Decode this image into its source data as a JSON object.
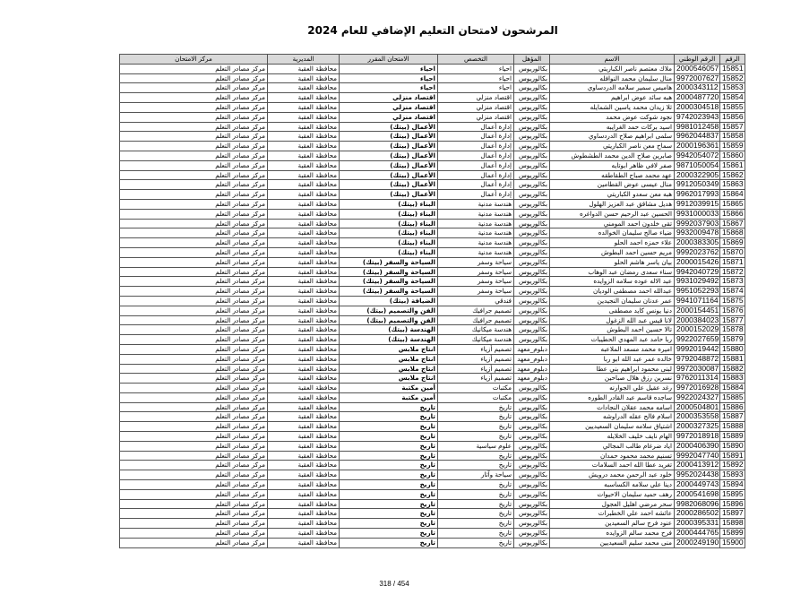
{
  "title": "المرشحون لامتحان التعليم الإضافي للعام 2024",
  "headers": {
    "number": "الرقم",
    "national_id": "الرقم الوطني",
    "name": "الاسم",
    "qualification": "المؤهل",
    "specialty": "التخصص",
    "exam": "الامتحان المقرر",
    "directorate": "المديرية",
    "center": "مركز الامتحان"
  },
  "rows": [
    [
      "15851",
      "2000546057",
      "ملاك معتصم ناصر الكباريتي",
      "بكالوريوس",
      "احياء",
      "احياء",
      "محافظة العقبة",
      "مركز مصادر التعلم"
    ],
    [
      "15852",
      "9972007627",
      "منال سليمان محمد النوافله",
      "بكالوريوس",
      "احياء",
      "احياء",
      "محافظة العقبة",
      "مركز مصادر التعلم"
    ],
    [
      "15853",
      "2000343112",
      "هاميس سمير سلامه الدردساوي",
      "بكالوريوس",
      "احياء",
      "احياء",
      "محافظة العقبة",
      "مركز مصادر التعلم"
    ],
    [
      "15854",
      "2000487720",
      "هبه سائد عوض ابراهيم",
      "بكالوريوس",
      "اقتصاد منزلي",
      "اقتصاد منزلي",
      "محافظة العقبة",
      "مركز مصادر التعلم"
    ],
    [
      "15855",
      "2000304518",
      "ثلا زيدان محمد ياسين الشمايله",
      "بكالوريوس",
      "اقتصاد منزلي",
      "اقتصاد منزلي",
      "محافظة العقبة",
      "مركز مصادر التعلم"
    ],
    [
      "15856",
      "9742023943",
      "نجود شوكت عوض محمد",
      "بكالوريوس",
      "اقتصاد منزلي",
      "اقتصاد منزلي",
      "محافظة العقبة",
      "مركز مصادر التعلم"
    ],
    [
      "15857",
      "9981012458",
      "اسيد بركات حمد الغرايبه",
      "بكالوريوس",
      "إدارة أعمال",
      "الأعمال (بيتك)",
      "محافظة العقبة",
      "مركز مصادر التعلم"
    ],
    [
      "15858",
      "9962044837",
      "سلمى ابراهيم صلاح الدردساوي",
      "بكالوريوس",
      "إدارة أعمال",
      "الأعمال (بيتك)",
      "محافظة العقبة",
      "مركز مصادر التعلم"
    ],
    [
      "15859",
      "2000196361",
      "سماح معن ناصر الكباريتي",
      "بكالوريوس",
      "إدارة أعمال",
      "الأعمال (بيتك)",
      "محافظة العقبة",
      "مركز مصادر التعلم"
    ],
    [
      "15860",
      "9942054072",
      "صابرين صلاح الدين محمد الطشطوش",
      "بكالوريوس",
      "إدارة أعمال",
      "الأعمال (بيتك)",
      "محافظة العقبة",
      "مركز مصادر التعلم"
    ],
    [
      "15861",
      "9871050054",
      "صفر لافي ظاهر ابوتايه",
      "بكالوريوس",
      "إدارة أعمال",
      "الأعمال (بيتك)",
      "محافظة العقبة",
      "مركز مصادر التعلم"
    ],
    [
      "15862",
      "2000322905",
      "عهد محمد صباح الطقاطقه",
      "بكالوريوس",
      "إدارة أعمال",
      "الأعمال (بيتك)",
      "محافظة العقبة",
      "مركز مصادر التعلم"
    ],
    [
      "15863",
      "9912050349",
      "منال عيسى عوض القطامين",
      "بكالوريوس",
      "إدارة أعمال",
      "الأعمال (بيتك)",
      "محافظة العقبة",
      "مركز مصادر التعلم"
    ],
    [
      "15864",
      "9962017993",
      "هبه معن سعدو الكباريتي",
      "بكالوريوس",
      "إدارة أعمال",
      "الأعمال (بيتك)",
      "محافظة العقبة",
      "مركز مصادر التعلم"
    ],
    [
      "15865",
      "9912039915",
      "هديل مشاقق عبد العزيز الهلول",
      "بكالوريوس",
      "هندسة مدنية",
      "البناء (بيتك)",
      "محافظة العقبة",
      "مركز مصادر التعلم"
    ],
    [
      "15866",
      "9931000033",
      "الحسين عبد الرحيم حسن الدواغره",
      "بكالوريوس",
      "هندسة مدنية",
      "البناء (بيتك)",
      "محافظة العقبة",
      "مركز مصادر التعلم"
    ],
    [
      "15867",
      "9992037903",
      "تقى خلدون احمد المومني",
      "بكالوريوس",
      "هندسة مدنية",
      "البناء (بيتك)",
      "محافظة العقبة",
      "مركز مصادر التعلم"
    ],
    [
      "15868",
      "9932009478",
      "ضياء صالح سليمان الخوالده",
      "بكالوريوس",
      "هندسة مدنية",
      "البناء (بيتك)",
      "محافظة العقبة",
      "مركز مصادر التعلم"
    ],
    [
      "15869",
      "2000383305",
      "علاء حمزه احمد الحلو",
      "بكالوريوس",
      "هندسة مدنية",
      "البناء (بيتك)",
      "محافظة العقبة",
      "مركز مصادر التعلم"
    ],
    [
      "15870",
      "9992023762",
      "مريم حسين احمد البطوش",
      "بكالوريوس",
      "هندسة مدنية",
      "البناء (بيتك)",
      "محافظة العقبة",
      "مركز مصادر التعلم"
    ],
    [
      "15871",
      "2000015426",
      "بيان ياسر هاشم الحلو",
      "بكالوريوس",
      "سياحة وسفر",
      "السياحة والسفر (بيتك)",
      "محافظة العقبة",
      "مركز مصادر التعلم"
    ],
    [
      "15872",
      "9942040729",
      "سناء سعدى رمضان عبد الوهاب",
      "بكالوريوس",
      "سياحة وسفر",
      "السياحة والسفر (بيتك)",
      "محافظة العقبة",
      "مركز مصادر التعلم"
    ],
    [
      "15873",
      "9931029492",
      "عبد الاله عوده سلامه الزوايده",
      "بكالوريوس",
      "سياحة وسفر",
      "السياحة والسفر (بيتك)",
      "محافظة العقبة",
      "مركز مصادر التعلم"
    ],
    [
      "15874",
      "9951052293",
      "عبدالله احمد مصطفى الوديان",
      "بكالوريوس",
      "سياحة وسفر",
      "السياحة والسفر (بيتك)",
      "محافظة العقبة",
      "مركز مصادر التعلم"
    ],
    [
      "15875",
      "9941071164",
      "عمر عدنان سليمان النجيدين",
      "بكالوريوس",
      "فندقي",
      "الضيافة (بيتك)",
      "محافظة العقبة",
      "مركز مصادر التعلم"
    ],
    [
      "15876",
      "2000154451",
      "دنيا يونس كايد مصطفى",
      "بكالوريوس",
      "تصميم جرافيك",
      "الفن والتصميم (بيتك)",
      "محافظة العقبة",
      "مركز مصادر التعلم"
    ],
    [
      "15877",
      "2000384023",
      "لانا قيس عبد الله الزغول",
      "بكالوريوس",
      "تصميم جرافيك",
      "الفن والتصميم (بيتك)",
      "محافظة العقبة",
      "مركز مصادر التعلم"
    ],
    [
      "15878",
      "2000152029",
      "تالا حسين احمد البطوش",
      "بكالوريوس",
      "هندسة ميكانيك",
      "الهندسة (بيتك)",
      "محافظة العقبة",
      "مركز مصادر التعلم"
    ],
    [
      "15879",
      "9922027659",
      "ربا حامد عبد المهدي الحطيبات",
      "بكالوريوس",
      "هندسة ميكانيك",
      "الهندسة (بيتك)",
      "محافظة العقبة",
      "مركز مصادر التعلم"
    ],
    [
      "15880",
      "9992019442",
      "اميره محمد مسعد الملاعبه",
      "دبلوم_معهد",
      "تصميم أزياء",
      "انتاج ملابس",
      "محافظة العقبة",
      "مركز مصادر التعلم"
    ],
    [
      "15881",
      "9792048872",
      "خالده عمر عبد الله ابو ربا",
      "دبلوم_معهد",
      "تصميم أزياء",
      "انتاج ملابس",
      "محافظة العقبة",
      "مركز مصادر التعلم"
    ],
    [
      "15882",
      "9972030087",
      "لبنى محمود ابراهيم بني عطا",
      "دبلوم_معهد",
      "تصميم أزياء",
      "انتاج ملابس",
      "محافظة العقبة",
      "مركز مصادر التعلم"
    ],
    [
      "15883",
      "9762011314",
      "نسرين رزق هلال صباحين",
      "دبلوم_معهد",
      "تصميم أزياء",
      "انتاج ملابس",
      "محافظة العقبة",
      "مركز مصادر التعلم"
    ],
    [
      "15884",
      "9972016928",
      "رغد عقيل علي الجوارنه",
      "بكالوريوس",
      "مكتبات",
      "أمين مكتبة",
      "محافظة العقبة",
      "مركز مصادر التعلم"
    ],
    [
      "15885",
      "9922024327",
      "ساجده قاسم عبد القادر الطوره",
      "بكالوريوس",
      "مكتبات",
      "أمين مكتبة",
      "محافظة العقبة",
      "مركز مصادر التعلم"
    ],
    [
      "15886",
      "2000504801",
      "اسامه محمد عقلان النجادات",
      "بكالوريوس",
      "تاريخ",
      "تاريخ",
      "محافظة العقبة",
      "مركز مصادر التعلم"
    ],
    [
      "15887",
      "2000353558",
      "اسلام فالح عقله الدراوشه",
      "بكالوريوس",
      "تاريخ",
      "تاريخ",
      "محافظة العقبة",
      "مركز مصادر التعلم"
    ],
    [
      "15888",
      "2000327325",
      "اشتياق سلامه سليمان السعيديين",
      "بكالوريوس",
      "تاريخ",
      "تاريخ",
      "محافظة العقبة",
      "مركز مصادر التعلم"
    ],
    [
      "15889",
      "9972018918",
      "الهام نايف خليف الخلايله",
      "بكالوريوس",
      "تاريخ",
      "تاريخ",
      "محافظة العقبة",
      "مركز مصادر التعلم"
    ],
    [
      "15890",
      "2000406390",
      "اياد ضرغام طالب المجالي",
      "بكالوريوس",
      "علوم سياسية",
      "تاريخ",
      "محافظة العقبة",
      "مركز مصادر التعلم"
    ],
    [
      "15891",
      "9992047740",
      "تسنيم محمد محمود حمدان",
      "بكالوريوس",
      "تاريخ",
      "تاريخ",
      "محافظة العقبة",
      "مركز مصادر التعلم"
    ],
    [
      "15892",
      "2000413912",
      "تغريد عطا الله احمد السلامات",
      "بكالوريوس",
      "تاريخ",
      "تاريخ",
      "محافظة العقبة",
      "مركز مصادر التعلم"
    ],
    [
      "15893",
      "9952024438",
      "خلود عبد الرحمن محمد درويش",
      "بكالوريوس",
      "سياحة وآثار",
      "تاريخ",
      "محافظة العقبة",
      "مركز مصادر التعلم"
    ],
    [
      "15894",
      "2000449743",
      "دينا علي سلامه الكساسبه",
      "بكالوريوس",
      "تاريخ",
      "تاريخ",
      "محافظة العقبة",
      "مركز مصادر التعلم"
    ],
    [
      "15895",
      "2000541698",
      "رهف حميد سليمان الاحيوات",
      "بكالوريوس",
      "تاريخ",
      "تاريخ",
      "محافظة العقبة",
      "مركز مصادر التعلم"
    ],
    [
      "15896",
      "9982068096",
      "سحر مرضي اهليل العجول",
      "بكالوريوس",
      "تاريخ",
      "تاريخ",
      "محافظة العقبة",
      "مركز مصادر التعلم"
    ],
    [
      "15897",
      "2000286502",
      "عائشه احمد علي الخطبرات",
      "بكالوريوس",
      "تاريخ",
      "تاريخ",
      "محافظة العقبة",
      "مركز مصادر التعلم"
    ],
    [
      "15898",
      "2000395331",
      "عنود فرج سالم السعيدين",
      "بكالوريوس",
      "تاريخ",
      "تاريخ",
      "محافظة العقبة",
      "مركز مصادر التعلم"
    ],
    [
      "15899",
      "2000444765",
      "فرح محمد سالم الزوايده",
      "بكالوريوس",
      "تاريخ",
      "تاريخ",
      "محافظة العقبة",
      "مركز مصادر التعلم"
    ],
    [
      "15900",
      "2000249190",
      "منى محمد سليم السعيديين",
      "بكالوريوس",
      "تاريخ",
      "تاريخ",
      "محافظة العقبة",
      "مركز مصادر التعلم"
    ]
  ],
  "footer": {
    "page": "318 / 454"
  }
}
